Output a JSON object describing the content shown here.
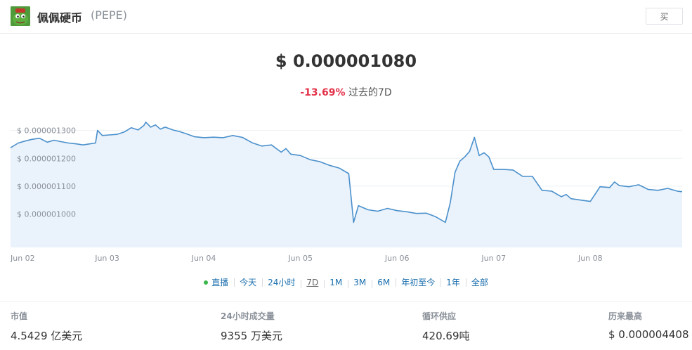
{
  "header": {
    "coin_name": "佩佩硬币",
    "coin_symbol": "(PEPE)",
    "buy_label": "买",
    "logo_icon": "pepe-frog-icon"
  },
  "price": {
    "value": "$ 0.000001080",
    "change_pct": "-13.69%",
    "change_label": "过去的7D"
  },
  "colors": {
    "line": "#4a90cc",
    "fill": "#eaf2fb",
    "negative": "#e4334b",
    "link": "#1b6fae",
    "live": "#39b54a"
  },
  "ranges": {
    "items": [
      "直播",
      "今天",
      "24小时",
      "7D",
      "1M",
      "3M",
      "6M",
      "年初至今",
      "1年",
      "全部"
    ],
    "active": "7D"
  },
  "stats": {
    "market_cap_label": "市值",
    "market_cap_value": "4.5429 亿美元",
    "volume_label": "24小时成交量",
    "volume_value": "9355 万美元",
    "supply_label": "循环供应",
    "supply_value": "420.69吨",
    "ath_label": "历来最高",
    "ath_value": "$ 0.000004408"
  },
  "chart_data": {
    "type": "area",
    "title": "",
    "xlabel": "",
    "ylabel": "",
    "y_unit": "USD",
    "ylim": [
      8.8e-07,
      1.39e-06
    ],
    "y_ticks": [
      1.3e-06,
      1.2e-06,
      1.1e-06,
      1e-06
    ],
    "y_tick_labels": [
      "$ 0.000001300",
      "$ 0.000001200",
      "$ 0.000001100",
      "$ 0.000001000"
    ],
    "x_ticks": [
      "Jun 02",
      "Jun 03",
      "Jun 04",
      "Jun 05",
      "Jun 06",
      "Jun 07",
      "Jun 08"
    ],
    "xlim": [
      0,
      6.95
    ],
    "grid": true,
    "legend": "none",
    "series": [
      {
        "x": [
          0,
          0.08,
          0.15,
          0.22,
          0.3,
          0.38,
          0.45,
          0.52,
          0.6,
          0.68,
          0.75,
          0.82,
          0.88,
          0.9,
          0.95,
          1.02,
          1.1,
          1.18,
          1.25,
          1.32,
          1.38,
          1.4,
          1.45,
          1.5,
          1.55,
          1.6,
          1.68,
          1.75,
          1.82,
          1.9,
          2.0,
          2.1,
          2.2,
          2.3,
          2.4,
          2.5,
          2.6,
          2.7,
          2.8,
          2.85,
          2.9,
          3.0,
          3.1,
          3.2,
          3.3,
          3.4,
          3.5,
          3.55,
          3.6,
          3.7,
          3.8,
          3.9,
          4.0,
          4.1,
          4.2,
          4.3,
          4.4,
          4.5,
          4.55,
          4.6,
          4.65,
          4.7,
          4.75,
          4.8,
          4.85,
          4.9,
          4.95,
          5.0,
          5.1,
          5.2,
          5.3,
          5.4,
          5.5,
          5.6,
          5.7,
          5.75,
          5.8,
          5.9,
          6.0,
          6.1,
          6.2,
          6.25,
          6.3,
          6.4,
          6.5,
          6.6,
          6.7,
          6.8,
          6.9,
          6.95
        ],
        "y": [
          1.238e-06,
          1.255e-06,
          1.262e-06,
          1.268e-06,
          1.272e-06,
          1.258e-06,
          1.265e-06,
          1.26e-06,
          1.255e-06,
          1.252e-06,
          1.248e-06,
          1.252e-06,
          1.255e-06,
          1.3e-06,
          1.282e-06,
          1.284e-06,
          1.286e-06,
          1.295e-06,
          1.31e-06,
          1.302e-06,
          1.318e-06,
          1.33e-06,
          1.312e-06,
          1.32e-06,
          1.305e-06,
          1.312e-06,
          1.302e-06,
          1.296e-06,
          1.288e-06,
          1.278e-06,
          1.274e-06,
          1.276e-06,
          1.274e-06,
          1.282e-06,
          1.275e-06,
          1.256e-06,
          1.244e-06,
          1.248e-06,
          1.222e-06,
          1.235e-06,
          1.215e-06,
          1.21e-06,
          1.195e-06,
          1.188e-06,
          1.175e-06,
          1.165e-06,
          1.145e-06,
          9.7e-07,
          1.03e-06,
          1.015e-06,
          1.01e-06,
          1.02e-06,
          1.012e-06,
          1.008e-06,
          1.002e-06,
          1.003e-06,
          9.9e-07,
          9.7e-07,
          1.04e-06,
          1.15e-06,
          1.19e-06,
          1.205e-06,
          1.225e-06,
          1.275e-06,
          1.21e-06,
          1.22e-06,
          1.205e-06,
          1.16e-06,
          1.16e-06,
          1.158e-06,
          1.135e-06,
          1.135e-06,
          1.085e-06,
          1.082e-06,
          1.062e-06,
          1.07e-06,
          1.055e-06,
          1.05e-06,
          1.045e-06,
          1.098e-06,
          1.095e-06,
          1.115e-06,
          1.102e-06,
          1.098e-06,
          1.105e-06,
          1.088e-06,
          1.085e-06,
          1.092e-06,
          1.082e-06,
          1.08e-06
        ]
      }
    ]
  }
}
